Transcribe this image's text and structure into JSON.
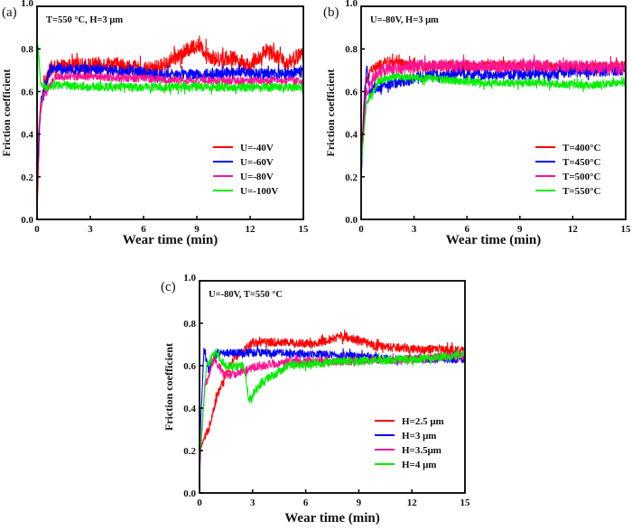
{
  "chart_data": [
    {
      "type": "line",
      "panel_label": "(a)",
      "annotation": "T=550 °C, H=3 μm",
      "xlabel": "Wear time (min)",
      "ylabel": "Friction coefficient",
      "xlim": [
        0,
        15
      ],
      "ylim": [
        0.0,
        1.0
      ],
      "xticks": [
        "0",
        "3",
        "6",
        "9",
        "12",
        "15"
      ],
      "yticks": [
        "0.0",
        "0.2",
        "0.4",
        "0.6",
        "0.8",
        "1.0"
      ],
      "grid": false,
      "legend_position": "bottom-right",
      "series": [
        {
          "name": "U=-40V",
          "color": "#ff0000",
          "noise": 0.035,
          "points": [
            [
              0,
              0.02
            ],
            [
              0.15,
              0.45
            ],
            [
              0.4,
              0.65
            ],
            [
              0.8,
              0.71
            ],
            [
              2,
              0.72
            ],
            [
              4,
              0.73
            ],
            [
              5,
              0.72
            ],
            [
              6,
              0.7
            ],
            [
              7,
              0.72
            ],
            [
              8,
              0.77
            ],
            [
              9,
              0.82
            ],
            [
              10,
              0.75
            ],
            [
              11,
              0.76
            ],
            [
              12,
              0.72
            ],
            [
              13,
              0.8
            ],
            [
              14,
              0.73
            ],
            [
              15,
              0.78
            ]
          ]
        },
        {
          "name": "U=-60V",
          "color": "#0000ff",
          "noise": 0.025,
          "points": [
            [
              0,
              0.2
            ],
            [
              0.2,
              0.55
            ],
            [
              0.5,
              0.64
            ],
            [
              0.8,
              0.71
            ],
            [
              3,
              0.7
            ],
            [
              5,
              0.7
            ],
            [
              7,
              0.68
            ],
            [
              9,
              0.68
            ],
            [
              11,
              0.69
            ],
            [
              13,
              0.68
            ],
            [
              15,
              0.69
            ]
          ]
        },
        {
          "name": "U=-80V",
          "color": "#ff1493",
          "noise": 0.018,
          "points": [
            [
              0,
              0.3
            ],
            [
              0.2,
              0.55
            ],
            [
              0.5,
              0.6
            ],
            [
              1,
              0.67
            ],
            [
              3,
              0.67
            ],
            [
              6,
              0.66
            ],
            [
              9,
              0.65
            ],
            [
              12,
              0.65
            ],
            [
              15,
              0.65
            ]
          ]
        },
        {
          "name": "U=-100V",
          "color": "#00ee00",
          "noise": 0.02,
          "points": [
            [
              0,
              0.3
            ],
            [
              0.05,
              0.82
            ],
            [
              0.2,
              0.64
            ],
            [
              0.5,
              0.62
            ],
            [
              1,
              0.63
            ],
            [
              4,
              0.62
            ],
            [
              8,
              0.62
            ],
            [
              12,
              0.62
            ],
            [
              15,
              0.62
            ]
          ]
        }
      ]
    },
    {
      "type": "line",
      "panel_label": "(b)",
      "annotation": "U=-80V, H=3 μm",
      "xlabel": "Wear time (min)",
      "ylabel": "Friction coefficient",
      "xlim": [
        0,
        15
      ],
      "ylim": [
        0.0,
        1.0
      ],
      "xticks": [
        "0",
        "3",
        "6",
        "9",
        "12",
        "15"
      ],
      "yticks": [
        "0.0",
        "0.2",
        "0.4",
        "0.6",
        "0.8",
        "1.0"
      ],
      "grid": false,
      "legend_position": "bottom-right",
      "series": [
        {
          "name": "T=400°C",
          "color": "#ff0000",
          "noise": 0.025,
          "points": [
            [
              0,
              0.25
            ],
            [
              0.2,
              0.62
            ],
            [
              0.5,
              0.7
            ],
            [
              1.5,
              0.74
            ],
            [
              3,
              0.72
            ],
            [
              6,
              0.72
            ],
            [
              9,
              0.72
            ],
            [
              12,
              0.71
            ],
            [
              15,
              0.72
            ]
          ]
        },
        {
          "name": "T=450°C",
          "color": "#0000ff",
          "noise": 0.025,
          "points": [
            [
              0,
              0.2
            ],
            [
              0.3,
              0.72
            ],
            [
              0.5,
              0.6
            ],
            [
              1,
              0.62
            ],
            [
              2,
              0.64
            ],
            [
              4,
              0.68
            ],
            [
              6,
              0.68
            ],
            [
              9,
              0.68
            ],
            [
              12,
              0.69
            ],
            [
              15,
              0.7
            ]
          ]
        },
        {
          "name": "T=500°C",
          "color": "#ff1493",
          "noise": 0.03,
          "points": [
            [
              0,
              0.25
            ],
            [
              0.3,
              0.6
            ],
            [
              1,
              0.7
            ],
            [
              3,
              0.72
            ],
            [
              6,
              0.72
            ],
            [
              9,
              0.72
            ],
            [
              12,
              0.72
            ],
            [
              15,
              0.71
            ]
          ]
        },
        {
          "name": "T=550°C",
          "color": "#00ee00",
          "noise": 0.018,
          "points": [
            [
              0,
              0.25
            ],
            [
              0.3,
              0.55
            ],
            [
              1,
              0.65
            ],
            [
              2,
              0.67
            ],
            [
              4,
              0.66
            ],
            [
              7,
              0.64
            ],
            [
              10,
              0.64
            ],
            [
              13,
              0.63
            ],
            [
              15,
              0.64
            ]
          ]
        }
      ]
    },
    {
      "type": "line",
      "panel_label": "(c)",
      "annotation": "U=-80V, T=550 °C",
      "xlabel": "Wear time (min)",
      "ylabel": "Friction coefficient",
      "xlim": [
        0,
        15
      ],
      "ylim": [
        0.0,
        1.0
      ],
      "xticks": [
        "0",
        "3",
        "6",
        "9",
        "12",
        "15"
      ],
      "yticks": [
        "0.0",
        "0.2",
        "0.4",
        "0.6",
        "0.8",
        "1.0"
      ],
      "grid": false,
      "legend_position": "bottom-right",
      "series": [
        {
          "name": "H=2.5 μm",
          "color": "#ff0000",
          "noise": 0.02,
          "points": [
            [
              0,
              0.2
            ],
            [
              0.5,
              0.3
            ],
            [
              1,
              0.46
            ],
            [
              1.5,
              0.56
            ],
            [
              2,
              0.64
            ],
            [
              3,
              0.71
            ],
            [
              5,
              0.71
            ],
            [
              6.5,
              0.7
            ],
            [
              8,
              0.74
            ],
            [
              9,
              0.72
            ],
            [
              10,
              0.69
            ],
            [
              12,
              0.68
            ],
            [
              15,
              0.67
            ]
          ]
        },
        {
          "name": "H=3 μm",
          "color": "#0000ff",
          "noise": 0.018,
          "points": [
            [
              0,
              0.2
            ],
            [
              0.25,
              0.68
            ],
            [
              0.5,
              0.58
            ],
            [
              1,
              0.66
            ],
            [
              3,
              0.66
            ],
            [
              5,
              0.66
            ],
            [
              8,
              0.65
            ],
            [
              11,
              0.63
            ],
            [
              15,
              0.63
            ]
          ]
        },
        {
          "name": "H=3.5μm",
          "color": "#ff1493",
          "noise": 0.02,
          "points": [
            [
              0,
              0.1
            ],
            [
              0.3,
              0.5
            ],
            [
              0.8,
              0.63
            ],
            [
              1.5,
              0.55
            ],
            [
              2.5,
              0.58
            ],
            [
              3.5,
              0.6
            ],
            [
              5,
              0.62
            ],
            [
              8,
              0.62
            ],
            [
              12,
              0.63
            ],
            [
              15,
              0.65
            ]
          ]
        },
        {
          "name": "H=4 μm",
          "color": "#00ee00",
          "noise": 0.02,
          "points": [
            [
              0,
              0.15
            ],
            [
              0.4,
              0.6
            ],
            [
              0.9,
              0.66
            ],
            [
              1.5,
              0.6
            ],
            [
              2.5,
              0.6
            ],
            [
              2.8,
              0.44
            ],
            [
              3.5,
              0.52
            ],
            [
              5,
              0.6
            ],
            [
              8,
              0.62
            ],
            [
              12,
              0.63
            ],
            [
              15,
              0.65
            ]
          ]
        }
      ]
    }
  ]
}
